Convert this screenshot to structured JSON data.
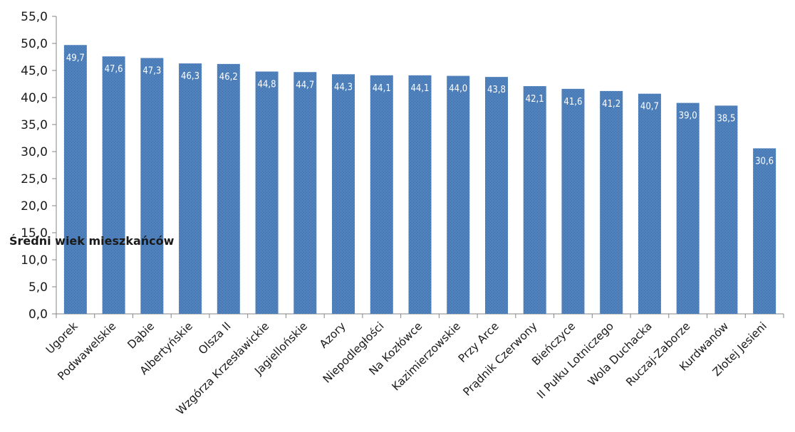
{
  "chart_data": {
    "type": "bar",
    "title": "",
    "xlabel": "",
    "ylabel": "Średni wiek mieszkańców",
    "ylim": [
      0,
      55
    ],
    "ytick_step": 5,
    "ytick_labels": [
      "0,0",
      "5,0",
      "10,0",
      "15,0",
      "20,0",
      "25,0",
      "30,0",
      "35,0",
      "40,0",
      "45,0",
      "50,0",
      "55,0"
    ],
    "grid": false,
    "legend": "none",
    "bar_color": "#4f81bd",
    "categories": [
      "Ugorek",
      "Podwawelskie",
      "Dąbie",
      "Albertyńskie",
      "Olsza II",
      "Wzgórza Krzesławickie",
      "Jagiellońskie",
      "Azory",
      "Niepodległości",
      "Na Kozłówce",
      "Kazimierzowskie",
      "Przy Arce",
      "Prądnik Czerwony",
      "Bieńczyce",
      "II Pułku Lotniczego",
      "Wola Duchacka",
      "Ruczaj-Zaborze",
      "Kurdwanów",
      "Złotej Jesieni"
    ],
    "values": [
      49.7,
      47.6,
      47.3,
      46.3,
      46.2,
      44.8,
      44.7,
      44.3,
      44.1,
      44.1,
      44.0,
      43.8,
      42.1,
      41.6,
      41.2,
      40.7,
      39.0,
      38.5,
      30.6
    ],
    "value_labels": [
      "49,7",
      "47,6",
      "47,3",
      "46,3",
      "46,2",
      "44,8",
      "44,7",
      "44,3",
      "44,1",
      "44,1",
      "44,0",
      "43,8",
      "42,1",
      "41,6",
      "41,2",
      "40,7",
      "39,0",
      "38,5",
      "30,6"
    ]
  }
}
